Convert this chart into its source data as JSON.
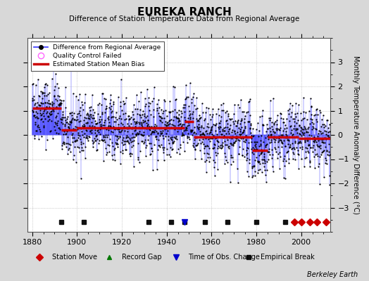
{
  "title": "EUREKA RANCH",
  "subtitle": "Difference of Station Temperature Data from Regional Average",
  "ylabel": "Monthly Temperature Anomaly Difference (°C)",
  "xlabel_ticks": [
    1880,
    1900,
    1920,
    1940,
    1960,
    1980,
    2000
  ],
  "ylim": [
    -4,
    4
  ],
  "xlim": [
    1878,
    2013
  ],
  "start_year": 1880,
  "end_year": 2013,
  "seed": 42,
  "background_color": "#d8d8d8",
  "plot_bg_color": "#ffffff",
  "line_color": "#3333ff",
  "dot_color": "#000000",
  "bias_color": "#cc0000",
  "station_move_color": "#cc0000",
  "record_gap_color": "#007700",
  "tobs_color": "#0000cc",
  "empirical_color": "#111111",
  "watermark": "Berkeley Earth",
  "bias_segments": [
    {
      "start": 1880,
      "end": 1893,
      "value": 1.1
    },
    {
      "start": 1893,
      "end": 1900,
      "value": 0.2
    },
    {
      "start": 1900,
      "end": 1948,
      "value": 0.3
    },
    {
      "start": 1948,
      "end": 1952,
      "value": 0.55
    },
    {
      "start": 1952,
      "end": 1978,
      "value": -0.1
    },
    {
      "start": 1978,
      "end": 1985,
      "value": -0.65
    },
    {
      "start": 1985,
      "end": 1994,
      "value": -0.1
    },
    {
      "start": 1994,
      "end": 1999,
      "value": -0.1
    },
    {
      "start": 1999,
      "end": 2013,
      "value": -0.15
    }
  ],
  "empirical_breaks": [
    1893,
    1903,
    1932,
    1942,
    1948,
    1957,
    1967,
    1980,
    1993
  ],
  "station_moves": [
    1997,
    2000,
    2004,
    2007,
    2011
  ],
  "tobs_changes": [
    1948
  ],
  "record_gaps": []
}
